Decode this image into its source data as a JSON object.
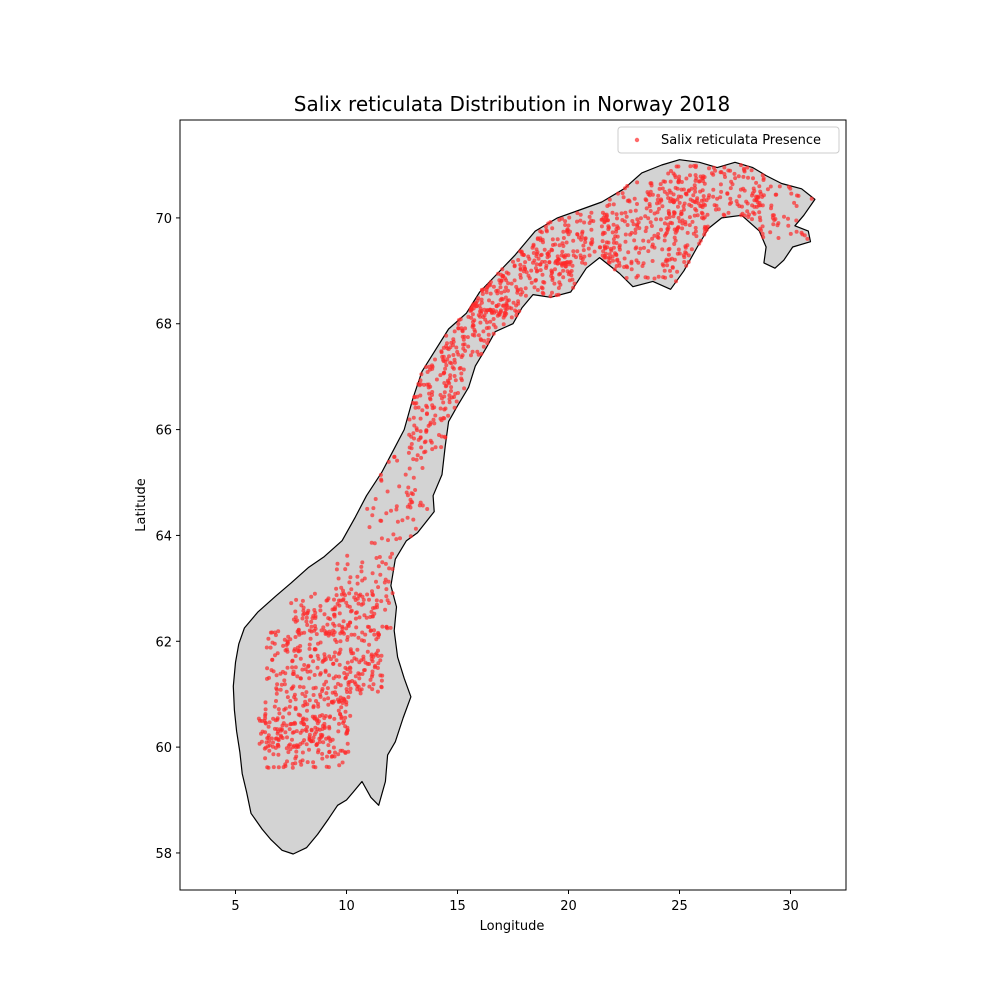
{
  "chart_data": {
    "type": "scatter",
    "title": "Salix reticulata Distribution in Norway 2018",
    "xlabel": "Longitude",
    "ylabel": "Latitude",
    "xlim": [
      2.5,
      32.5
    ],
    "ylim": [
      57.3,
      71.85
    ],
    "xticks": [
      5,
      10,
      15,
      20,
      25,
      30
    ],
    "yticks": [
      58,
      60,
      62,
      64,
      66,
      68,
      70
    ],
    "grid": false,
    "legend": {
      "placement": "top-right",
      "entries": [
        {
          "label": "Salix reticulata Presence",
          "color": "#ff2a2a"
        }
      ]
    },
    "basemap": {
      "fill": "#d3d3d3",
      "edge": "#000000",
      "outline": [
        [
          7.6,
          57.98
        ],
        [
          7.1,
          58.05
        ],
        [
          6.6,
          58.25
        ],
        [
          6.2,
          58.45
        ],
        [
          5.7,
          58.75
        ],
        [
          5.5,
          59.15
        ],
        [
          5.3,
          59.5
        ],
        [
          5.2,
          59.9
        ],
        [
          5.05,
          60.3
        ],
        [
          4.95,
          60.7
        ],
        [
          4.9,
          61.15
        ],
        [
          5.0,
          61.6
        ],
        [
          5.15,
          61.95
        ],
        [
          5.4,
          62.25
        ],
        [
          6.0,
          62.55
        ],
        [
          6.8,
          62.85
        ],
        [
          7.5,
          63.1
        ],
        [
          8.3,
          63.4
        ],
        [
          9.0,
          63.6
        ],
        [
          9.8,
          63.9
        ],
        [
          10.4,
          64.35
        ],
        [
          10.9,
          64.75
        ],
        [
          11.6,
          65.2
        ],
        [
          12.1,
          65.6
        ],
        [
          12.6,
          66.0
        ],
        [
          13.0,
          66.6
        ],
        [
          13.4,
          67.1
        ],
        [
          14.0,
          67.5
        ],
        [
          14.6,
          67.9
        ],
        [
          15.4,
          68.2
        ],
        [
          16.0,
          68.6
        ],
        [
          16.8,
          68.95
        ],
        [
          17.6,
          69.3
        ],
        [
          18.5,
          69.75
        ],
        [
          19.5,
          70.0
        ],
        [
          20.5,
          70.15
        ],
        [
          21.5,
          70.3
        ],
        [
          22.5,
          70.55
        ],
        [
          23.3,
          70.85
        ],
        [
          24.2,
          71.0
        ],
        [
          25.0,
          71.1
        ],
        [
          25.9,
          71.05
        ],
        [
          26.7,
          70.95
        ],
        [
          27.5,
          71.05
        ],
        [
          28.3,
          70.95
        ],
        [
          28.9,
          70.8
        ],
        [
          29.6,
          70.65
        ],
        [
          30.5,
          70.55
        ],
        [
          31.1,
          70.35
        ],
        [
          30.6,
          70.05
        ],
        [
          30.2,
          69.85
        ],
        [
          30.8,
          69.75
        ],
        [
          30.9,
          69.55
        ],
        [
          30.1,
          69.45
        ],
        [
          29.7,
          69.2
        ],
        [
          29.3,
          69.05
        ],
        [
          28.8,
          69.15
        ],
        [
          28.9,
          69.45
        ],
        [
          28.6,
          69.75
        ],
        [
          27.8,
          70.05
        ],
        [
          26.9,
          70.0
        ],
        [
          26.3,
          69.8
        ],
        [
          25.8,
          69.45
        ],
        [
          25.2,
          69.0
        ],
        [
          24.6,
          68.65
        ],
        [
          23.8,
          68.8
        ],
        [
          22.9,
          68.7
        ],
        [
          22.3,
          68.95
        ],
        [
          21.4,
          69.25
        ],
        [
          20.8,
          69.05
        ],
        [
          20.1,
          68.6
        ],
        [
          19.2,
          68.5
        ],
        [
          18.4,
          68.55
        ],
        [
          17.9,
          68.3
        ],
        [
          17.5,
          68.0
        ],
        [
          16.7,
          67.85
        ],
        [
          16.3,
          67.55
        ],
        [
          15.8,
          67.2
        ],
        [
          15.5,
          66.8
        ],
        [
          15.0,
          66.45
        ],
        [
          14.6,
          66.15
        ],
        [
          14.45,
          65.7
        ],
        [
          14.3,
          65.15
        ],
        [
          13.9,
          64.75
        ],
        [
          13.95,
          64.45
        ],
        [
          13.2,
          64.05
        ],
        [
          12.7,
          63.9
        ],
        [
          12.2,
          63.55
        ],
        [
          12.0,
          63.05
        ],
        [
          12.25,
          62.65
        ],
        [
          12.15,
          62.2
        ],
        [
          12.3,
          61.7
        ],
        [
          12.6,
          61.3
        ],
        [
          12.9,
          60.95
        ],
        [
          12.55,
          60.55
        ],
        [
          12.2,
          60.1
        ],
        [
          11.85,
          59.85
        ],
        [
          11.75,
          59.35
        ],
        [
          11.45,
          58.9
        ],
        [
          11.1,
          59.05
        ],
        [
          10.7,
          59.35
        ],
        [
          10.3,
          59.15
        ],
        [
          10.0,
          59.0
        ],
        [
          9.6,
          58.9
        ],
        [
          9.2,
          58.65
        ],
        [
          8.7,
          58.35
        ],
        [
          8.2,
          58.1
        ]
      ]
    },
    "series": [
      {
        "label": "Salix reticulata Presence",
        "color": "#ff2a2a",
        "clusters": [
          {
            "lon": [
              6.3,
              10.2
            ],
            "lat": [
              59.6,
              61.0
            ],
            "n": 200
          },
          {
            "lon": [
              6.0,
              9.3
            ],
            "lat": [
              60.0,
              60.6
            ],
            "n": 70
          },
          {
            "lon": [
              6.4,
              11.7
            ],
            "lat": [
              61.0,
              62.2
            ],
            "n": 240
          },
          {
            "lon": [
              7.5,
              12.0
            ],
            "lat": [
              62.1,
              62.9
            ],
            "n": 140
          },
          {
            "lon": [
              9.5,
              12.2
            ],
            "lat": [
              62.9,
              63.7
            ],
            "n": 40
          },
          {
            "lon": [
              10.8,
              13.8
            ],
            "lat": [
              63.8,
              65.6
            ],
            "n": 60
          },
          {
            "lon": [
              12.8,
              15.3
            ],
            "lat": [
              65.6,
              67.4
            ],
            "n": 140
          },
          {
            "lon": [
              14.2,
              17.8
            ],
            "lat": [
              67.4,
              68.7
            ],
            "n": 140
          },
          {
            "lon": [
              15.5,
              20.3
            ],
            "lat": [
              68.2,
              69.6
            ],
            "n": 170
          },
          {
            "lon": [
              18.5,
              22.3
            ],
            "lat": [
              69.0,
              70.1
            ],
            "n": 140
          },
          {
            "lon": [
              21.5,
              26.3
            ],
            "lat": [
              68.8,
              70.7
            ],
            "n": 240
          },
          {
            "lon": [
              24.0,
              28.8
            ],
            "lat": [
              69.7,
              71.0
            ],
            "n": 170
          },
          {
            "lon": [
              27.5,
              31.0
            ],
            "lat": [
              69.6,
              70.6
            ],
            "n": 60
          }
        ]
      }
    ]
  }
}
